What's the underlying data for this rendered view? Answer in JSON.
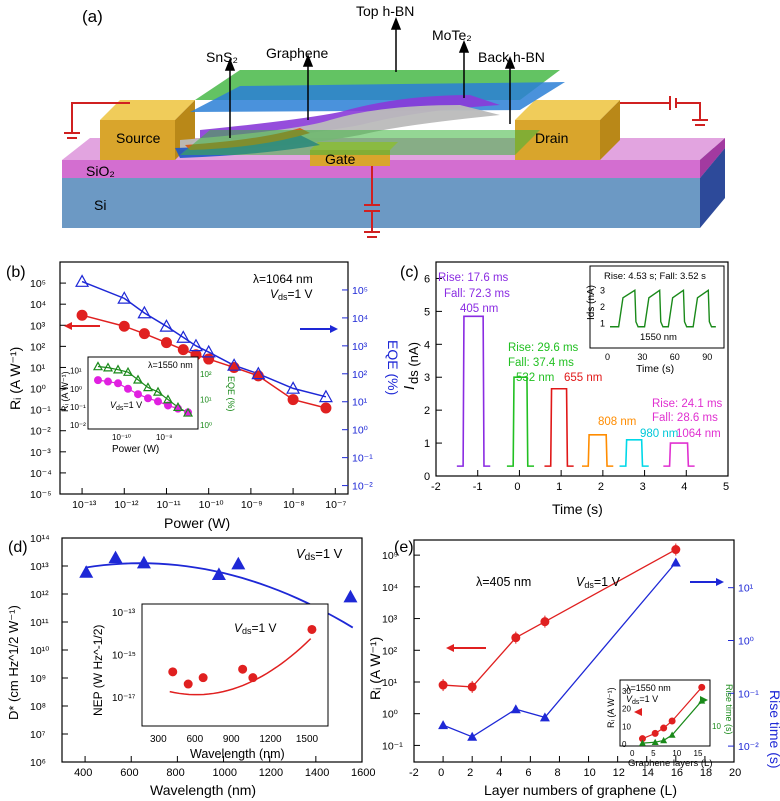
{
  "panel_a": {
    "label": "(a)",
    "layers": {
      "top_hbn": "Top h-BN",
      "mote2": "MoTe₂",
      "back_hbn": "Back h-BN",
      "sns2": "SnS₂",
      "graphene": "Graphene",
      "source": "Source",
      "drain": "Drain",
      "gate": "Gate",
      "sio2": "SiO₂",
      "si": "Si"
    }
  },
  "panel_b": {
    "label": "(b)",
    "annotation_lambda": "λ=1064 nm",
    "annotation_vds": "Vds=1 V",
    "inset_lambda": "λ=1550 nm",
    "inset_vds": "Vds=1 V",
    "inset_xlabel": "Power (W)",
    "inset_ylabel": "Rᵢ (A W⁻¹)",
    "inset_y2label": "EQE (%)"
  },
  "panel_c": {
    "label": "(c)",
    "ann_405_rise": "Rise: 17.6 ms",
    "ann_405_fall": "Fall: 72.3 ms",
    "ann_405_nm": "405 nm",
    "ann_532_rise": "Rise: 29.6 ms",
    "ann_532_fall": "Fall: 37.4 ms",
    "ann_532_nm": "532 nm",
    "ann_655_nm": "655 nm",
    "ann_808_nm": "808 nm",
    "ann_980_nm": "980 nm",
    "ann_1064_rise": "Rise: 24.1 ms",
    "ann_1064_fall": "Fall: 28.6 ms",
    "ann_1064_nm": "1064 nm",
    "inset_title": "Rise: 4.53 s; Fall: 3.52 s",
    "inset_wavelength": "1550 nm",
    "inset_xlabel": "Time (s)",
    "inset_ylabel": "Ids (nA)"
  },
  "panel_d": {
    "label": "(d)",
    "annotation_vds": "Vds=1 V",
    "inset_vds": "Vds=1 V",
    "inset_xlabel": "Wavelength (nm)",
    "inset_ylabel": "NEP (W Hz^-1/2)"
  },
  "panel_e": {
    "label": "(e)",
    "annotation_lambda": "λ=405 nm",
    "annotation_vds": "Vds=1 V",
    "inset_lambda": "λ=1550 nm",
    "inset_vds": "Vds=1 V",
    "inset_xlabel": "Graphene layers (L)",
    "inset_ylabel": "Rᵢ (A W⁻¹)",
    "inset_y2label": "Rise time (s)"
  },
  "chart_data": [
    {
      "id": "b",
      "type": "scatter",
      "xlabel": "Power (W)",
      "ylabel": "Rᵢ (A W⁻¹)",
      "y2label": "EQE (%)",
      "xscale": "log",
      "yscale": "log",
      "xlim": [
        3e-14,
        2e-07
      ],
      "ylim": [
        1e-05,
        1000000.0
      ],
      "y2lim": [
        0.005,
        1000000.0
      ],
      "xticks": [
        "10⁻¹³",
        "10⁻¹²",
        "10⁻¹¹",
        "10⁻¹⁰",
        "10⁻⁹",
        "10⁻⁸",
        "10⁻⁷"
      ],
      "yticks": [
        "10⁻⁵",
        "10⁻⁴",
        "10⁻³",
        "10⁻²",
        "10⁻¹",
        "10⁰",
        "10¹",
        "10²",
        "10³",
        "10⁴",
        "10⁵"
      ],
      "y2ticks": [
        "10⁻²",
        "10⁻¹",
        "10⁰",
        "10¹",
        "10²",
        "10³",
        "10⁴",
        "10⁵"
      ],
      "series": [
        {
          "axis": "left",
          "marker": "circle",
          "color": "#e02020",
          "x": [
            1e-13,
            1e-12,
            3e-12,
            1e-11,
            2.5e-11,
            5e-11,
            1e-10,
            4e-10,
            1.5e-09,
            1e-08,
            6e-08
          ],
          "y": [
            3000,
            900,
            400,
            150,
            70,
            40,
            25,
            10,
            4,
            0.3,
            0.12
          ]
        },
        {
          "axis": "right",
          "marker": "triangle-open",
          "color": "#1e28d6",
          "x": [
            1e-13,
            1e-12,
            3e-12,
            1e-11,
            2.5e-11,
            5e-11,
            1e-10,
            4e-10,
            1.5e-09,
            1e-08,
            6e-08
          ],
          "y": [
            200000,
            50000,
            15000,
            5000,
            2000,
            1000,
            600,
            200,
            100,
            30,
            15
          ]
        }
      ]
    },
    {
      "id": "b-inset",
      "type": "scatter",
      "xlabel": "Power (W)",
      "ylabel": "Rᵢ (A W⁻¹)",
      "y2label": "EQE (%)",
      "xscale": "log",
      "yscale": "log",
      "xticks": [
        "10⁻¹⁰",
        "10⁻⁸"
      ],
      "yticks": [
        "10⁻²",
        "10⁻¹",
        "10⁰",
        "10¹"
      ],
      "y2ticks": [
        "10⁰",
        "10¹",
        "10²"
      ],
      "series": [
        {
          "axis": "left",
          "marker": "circle",
          "color": "#e020e0",
          "y": [
            3,
            2.5,
            2,
            1,
            0.5,
            0.3,
            0.2,
            0.12,
            0.08,
            0.05
          ]
        },
        {
          "axis": "right",
          "marker": "triangle-open",
          "color": "#1a8a1a",
          "y": [
            200,
            180,
            150,
            120,
            60,
            30,
            20,
            10,
            5,
            3
          ]
        }
      ]
    },
    {
      "id": "c",
      "type": "line",
      "xlabel": "Time (s)",
      "ylabel": "Ids (nA)",
      "xlim": [
        -2,
        5
      ],
      "ylim": [
        0,
        6.5
      ],
      "xticks": [
        -2,
        -1,
        0,
        1,
        2,
        3,
        4,
        5
      ],
      "yticks": [
        0,
        1,
        2,
        3,
        4,
        5,
        6
      ],
      "series": [
        {
          "name": "405 nm",
          "color": "#8a2be2",
          "on": [
            -1.35,
            -0.85
          ],
          "high": 4.85
        },
        {
          "name": "532 nm",
          "color": "#22c022",
          "on": [
            -0.15,
            0.2
          ],
          "high": 3.0
        },
        {
          "name": "655 nm",
          "color": "#e01818",
          "on": [
            0.75,
            1.15
          ],
          "high": 2.65
        },
        {
          "name": "808 nm",
          "color": "#ff8c00",
          "on": [
            1.65,
            2.1
          ],
          "high": 1.25
        },
        {
          "name": "980 nm",
          "color": "#00d8e8",
          "on": [
            2.55,
            2.95
          ],
          "high": 1.1
        },
        {
          "name": "1064 nm",
          "color": "#e030d0",
          "on": [
            3.6,
            4.05
          ],
          "high": 1.0
        }
      ],
      "baseline": 0.3
    },
    {
      "id": "c-inset",
      "type": "line",
      "xlabel": "Time (s)",
      "ylabel": "Ids (nA)",
      "xlim": [
        0,
        100
      ],
      "xticks": [
        0,
        30,
        60,
        90
      ],
      "yticks": [
        1,
        2,
        3
      ],
      "cycles_on": [
        [
          8,
          24
        ],
        [
          32,
          47
        ],
        [
          54,
          69
        ],
        [
          77,
          92
        ]
      ],
      "low": 0.8,
      "high": 3.0
    },
    {
      "id": "d",
      "type": "scatter",
      "xlabel": "Wavelength (nm)",
      "ylabel": "D* (cm Hz^1/2 W⁻¹)",
      "yscale": "log",
      "xlim": [
        300,
        1600
      ],
      "ylim": [
        1000000.0,
        100000000000000.0
      ],
      "xticks": [
        400,
        600,
        800,
        1000,
        1200,
        1400,
        1600
      ],
      "yticks": [
        "10⁶",
        "10⁷",
        "10⁸",
        "10⁹",
        "10¹⁰",
        "10¹¹",
        "10¹²",
        "10¹³",
        "10¹⁴"
      ],
      "series": [
        {
          "marker": "triangle",
          "color": "#1e28d6",
          "x": [
            405,
            532,
            655,
            980,
            1064,
            1550
          ],
          "y": [
            6000000000000.0,
            20000000000000.0,
            13000000000000.0,
            5000000000000.0,
            12000000000000.0,
            800000000000.0
          ]
        }
      ]
    },
    {
      "id": "d-inset",
      "type": "scatter",
      "xlabel": "Wavelength (nm)",
      "ylabel": "NEP (W Hz^-1/2)",
      "yscale": "log",
      "xlim": [
        300,
        1600
      ],
      "xticks": [
        300,
        600,
        900,
        1200,
        1500
      ],
      "yticks": [
        "10⁻¹⁷",
        "10⁻¹⁵",
        "10⁻¹³"
      ],
      "series": [
        {
          "marker": "circle",
          "color": "#e02020",
          "x": [
            405,
            532,
            655,
            980,
            1064,
            1550
          ],
          "y": [
            1.5e-16,
            4e-17,
            8e-17,
            2e-16,
            8e-17,
            1.5e-14
          ]
        }
      ]
    },
    {
      "id": "e",
      "type": "scatter",
      "xlabel": "Layer numbers of graphene (L)",
      "ylabel": "Rᵢ (A W⁻¹)",
      "y2label": "Rise time (s)",
      "yscale": "log",
      "xlim": [
        -2,
        20
      ],
      "ylim": [
        0.01,
        300000.0
      ],
      "xticks": [
        -2,
        0,
        2,
        4,
        6,
        8,
        10,
        12,
        14,
        16,
        18,
        20
      ],
      "yticks": [
        "10⁻¹",
        "10⁰",
        "10¹",
        "10²",
        "10³",
        "10⁴",
        "10⁵"
      ],
      "y2ticks": [
        "10⁻²",
        "10⁻¹",
        "10⁰",
        "10¹"
      ],
      "series": [
        {
          "axis": "left",
          "marker": "circle",
          "color": "#e02020",
          "x": [
            0,
            2,
            5,
            7,
            16
          ],
          "y": [
            8,
            7,
            250,
            800,
            150000
          ]
        },
        {
          "axis": "right",
          "marker": "triangle",
          "color": "#1e28d6",
          "x": [
            0,
            2,
            5,
            7,
            16
          ],
          "y": [
            0.025,
            0.015,
            0.05,
            0.035,
            30
          ]
        }
      ]
    },
    {
      "id": "e-inset",
      "type": "scatter",
      "xlabel": "Graphene layers (L)",
      "ylabel": "Rᵢ (A W⁻¹)",
      "y2label": "Rise time (s)",
      "xticks": [
        0,
        5,
        10,
        15
      ],
      "yticks": [
        0,
        10,
        20,
        30
      ],
      "y2ticks": [
        10
      ],
      "series": [
        {
          "axis": "left",
          "marker": "circle",
          "color": "#e02020",
          "x": [
            2,
            5,
            7,
            9,
            16
          ],
          "y": [
            3,
            6,
            9,
            13,
            32
          ]
        },
        {
          "axis": "right",
          "marker": "triangle",
          "color": "#1a8a1a",
          "x": [
            2,
            5,
            7,
            9,
            16
          ],
          "y": [
            0.5,
            1,
            2,
            5,
            24
          ]
        }
      ]
    }
  ]
}
